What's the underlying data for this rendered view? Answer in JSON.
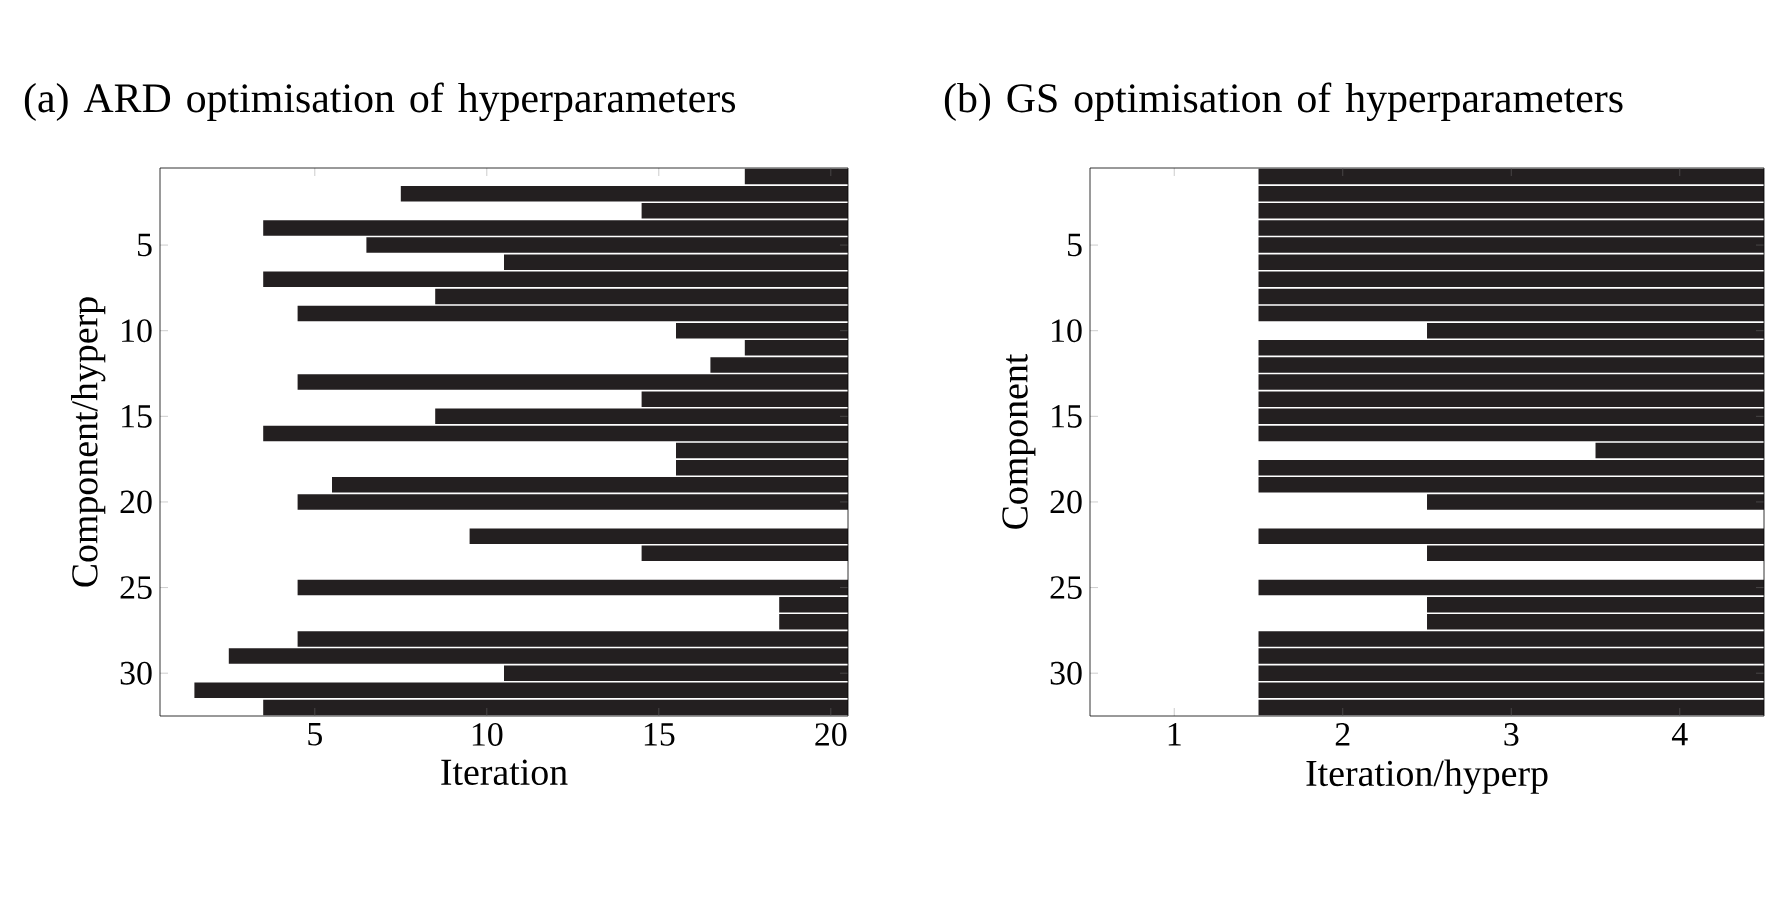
{
  "chart_data": [
    {
      "type": "bar",
      "orientation": "horizontal",
      "title": "(a) ARD optimisation of hyperparameters",
      "xlabel": "Iteration",
      "ylabel": "Component/hyperp",
      "xlim": [
        0.5,
        20.5
      ],
      "xticks": [
        5,
        10,
        15,
        20
      ],
      "categories": [
        null,
        null,
        null,
        null,
        "5",
        null,
        null,
        null,
        null,
        "10",
        null,
        null,
        null,
        null,
        "15",
        null,
        null,
        null,
        null,
        "20",
        null,
        null,
        null,
        null,
        "25",
        null,
        null,
        null,
        null,
        "30",
        null,
        null
      ],
      "series": [
        {
          "color": "#231f20",
          "base": [
            17.5,
            7.5,
            14.5,
            3.5,
            6.5,
            10.5,
            3.5,
            8.5,
            4.5,
            15.5,
            17.5,
            16.5,
            4.5,
            14.5,
            8.5,
            3.5,
            15.5,
            15.5,
            5.5,
            4.5,
            null,
            9.5,
            14.5,
            null,
            4.5,
            18.5,
            18.5,
            4.5,
            2.5,
            10.5,
            1.5,
            3.5
          ],
          "values": [
            3,
            13,
            6,
            17,
            14,
            10,
            17,
            12,
            16,
            5,
            3,
            4,
            16,
            6,
            12,
            17,
            5,
            5,
            15,
            16,
            null,
            11,
            6,
            null,
            16,
            2,
            2,
            16,
            18,
            10,
            19,
            17
          ]
        }
      ]
    },
    {
      "type": "bar",
      "orientation": "horizontal",
      "title": "(b) GS optimisation of hyperparameters",
      "xlabel": "Iteration/hyperp",
      "ylabel": "Component",
      "xlim": [
        0.5,
        4.5
      ],
      "xticks": [
        1,
        2,
        3,
        4
      ],
      "categories": [
        null,
        null,
        null,
        null,
        "5",
        null,
        null,
        null,
        null,
        "10",
        null,
        null,
        null,
        null,
        "15",
        null,
        null,
        null,
        null,
        "20",
        null,
        null,
        null,
        null,
        "25",
        null,
        null,
        null,
        null,
        "30",
        null,
        null
      ],
      "series": [
        {
          "color": "#231f20",
          "base": [
            1.5,
            1.5,
            1.5,
            1.5,
            1.5,
            1.5,
            1.5,
            1.5,
            1.5,
            2.5,
            1.5,
            1.5,
            1.5,
            1.5,
            1.5,
            1.5,
            3.5,
            1.5,
            1.5,
            2.5,
            null,
            1.5,
            2.5,
            null,
            1.5,
            2.5,
            2.5,
            1.5,
            1.5,
            1.5,
            1.5,
            1.5
          ],
          "values": [
            3,
            3,
            3,
            3,
            3,
            3,
            3,
            3,
            3,
            2,
            3,
            3,
            3,
            3,
            3,
            3,
            1,
            3,
            3,
            2,
            null,
            3,
            2,
            null,
            3,
            2,
            2,
            3,
            3,
            3,
            3,
            3
          ]
        }
      ]
    }
  ]
}
